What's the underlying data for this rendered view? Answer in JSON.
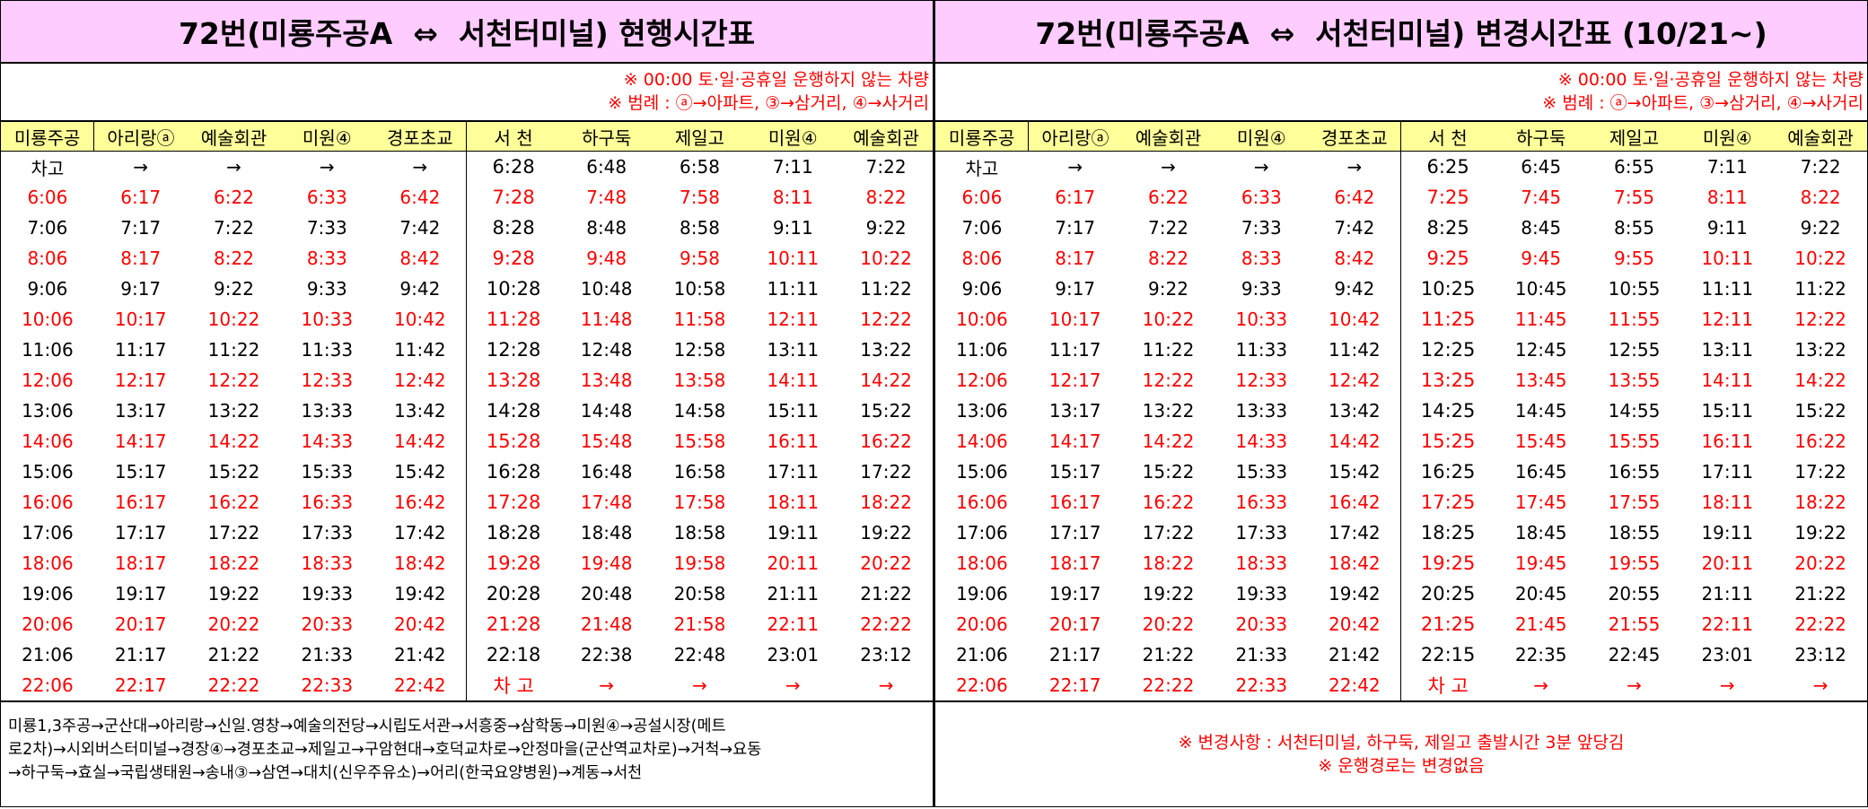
{
  "left": {
    "title": "72번(미룡주공A  ⇔  서천터미널) 현행시간표",
    "notes": [
      "※ 00:00 토·일·공휴일 운행하지 않는 차량",
      "※ 범례 : ⓐ→아파트, ③→삼거리, ④→사거리"
    ],
    "headers": [
      "미룡주공",
      "아리랑ⓐ",
      "예술회관",
      "미원④",
      "경포초교",
      "서 천",
      "하구둑",
      "제일고",
      "미원④",
      "예술회관"
    ],
    "rows": [
      [
        "차고",
        "→",
        "→",
        "→",
        "→",
        "6:28",
        "6:48",
        "6:58",
        "7:11",
        "7:22"
      ],
      [
        "6:06",
        "6:17",
        "6:22",
        "6:33",
        "6:42",
        "7:28",
        "7:48",
        "7:58",
        "8:11",
        "8:22"
      ],
      [
        "7:06",
        "7:17",
        "7:22",
        "7:33",
        "7:42",
        "8:28",
        "8:48",
        "8:58",
        "9:11",
        "9:22"
      ],
      [
        "8:06",
        "8:17",
        "8:22",
        "8:33",
        "8:42",
        "9:28",
        "9:48",
        "9:58",
        "10:11",
        "10:22"
      ],
      [
        "9:06",
        "9:17",
        "9:22",
        "9:33",
        "9:42",
        "10:28",
        "10:48",
        "10:58",
        "11:11",
        "11:22"
      ],
      [
        "10:06",
        "10:17",
        "10:22",
        "10:33",
        "10:42",
        "11:28",
        "11:48",
        "11:58",
        "12:11",
        "12:22"
      ],
      [
        "11:06",
        "11:17",
        "11:22",
        "11:33",
        "11:42",
        "12:28",
        "12:48",
        "12:58",
        "13:11",
        "13:22"
      ],
      [
        "12:06",
        "12:17",
        "12:22",
        "12:33",
        "12:42",
        "13:28",
        "13:48",
        "13:58",
        "14:11",
        "14:22"
      ],
      [
        "13:06",
        "13:17",
        "13:22",
        "13:33",
        "13:42",
        "14:28",
        "14:48",
        "14:58",
        "15:11",
        "15:22"
      ],
      [
        "14:06",
        "14:17",
        "14:22",
        "14:33",
        "14:42",
        "15:28",
        "15:48",
        "15:58",
        "16:11",
        "16:22"
      ],
      [
        "15:06",
        "15:17",
        "15:22",
        "15:33",
        "15:42",
        "16:28",
        "16:48",
        "16:58",
        "17:11",
        "17:22"
      ],
      [
        "16:06",
        "16:17",
        "16:22",
        "16:33",
        "16:42",
        "17:28",
        "17:48",
        "17:58",
        "18:11",
        "18:22"
      ],
      [
        "17:06",
        "17:17",
        "17:22",
        "17:33",
        "17:42",
        "18:28",
        "18:48",
        "18:58",
        "19:11",
        "19:22"
      ],
      [
        "18:06",
        "18:17",
        "18:22",
        "18:33",
        "18:42",
        "19:28",
        "19:48",
        "19:58",
        "20:11",
        "20:22"
      ],
      [
        "19:06",
        "19:17",
        "19:22",
        "19:33",
        "19:42",
        "20:28",
        "20:48",
        "20:58",
        "21:11",
        "21:22"
      ],
      [
        "20:06",
        "20:17",
        "20:22",
        "20:33",
        "20:42",
        "21:28",
        "21:48",
        "21:58",
        "22:11",
        "22:22"
      ],
      [
        "21:06",
        "21:17",
        "21:22",
        "21:33",
        "21:42",
        "22:18",
        "22:38",
        "22:48",
        "23:01",
        "23:12"
      ],
      [
        "22:06",
        "22:17",
        "22:22",
        "22:33",
        "22:42",
        "차 고",
        "→",
        "→",
        "→",
        "→"
      ]
    ],
    "route": [
      "미룡1,3주공→군산대→아리랑→신일.영창→예술의전당→시립도서관→서흥중→삼학동→미원④→공설시장(메트",
      "로2차)→시외버스터미널→경장④→경포초교→제일고→구암현대→호덕교차로→안정마을(군산역교차로)→거척→요동",
      "→하구둑→효실→국립생태원→송내③→삼연→대치(신우주유소)→어리(한국요양병원)→계동→서천"
    ]
  },
  "right": {
    "title": "72번(미룡주공A  ⇔  서천터미널) 변경시간표 (10/21~)",
    "notes": [
      "※ 00:00 토·일·공휴일 운행하지 않는 차량",
      "※ 범례 : ⓐ→아파트, ③→삼거리, ④→사거리"
    ],
    "headers": [
      "미룡주공",
      "아리랑ⓐ",
      "예술회관",
      "미원④",
      "경포초교",
      "서 천",
      "하구둑",
      "제일고",
      "미원④",
      "예술회관"
    ],
    "rows": [
      [
        "차고",
        "→",
        "→",
        "→",
        "→",
        "6:25",
        "6:45",
        "6:55",
        "7:11",
        "7:22"
      ],
      [
        "6:06",
        "6:17",
        "6:22",
        "6:33",
        "6:42",
        "7:25",
        "7:45",
        "7:55",
        "8:11",
        "8:22"
      ],
      [
        "7:06",
        "7:17",
        "7:22",
        "7:33",
        "7:42",
        "8:25",
        "8:45",
        "8:55",
        "9:11",
        "9:22"
      ],
      [
        "8:06",
        "8:17",
        "8:22",
        "8:33",
        "8:42",
        "9:25",
        "9:45",
        "9:55",
        "10:11",
        "10:22"
      ],
      [
        "9:06",
        "9:17",
        "9:22",
        "9:33",
        "9:42",
        "10:25",
        "10:45",
        "10:55",
        "11:11",
        "11:22"
      ],
      [
        "10:06",
        "10:17",
        "10:22",
        "10:33",
        "10:42",
        "11:25",
        "11:45",
        "11:55",
        "12:11",
        "12:22"
      ],
      [
        "11:06",
        "11:17",
        "11:22",
        "11:33",
        "11:42",
        "12:25",
        "12:45",
        "12:55",
        "13:11",
        "13:22"
      ],
      [
        "12:06",
        "12:17",
        "12:22",
        "12:33",
        "12:42",
        "13:25",
        "13:45",
        "13:55",
        "14:11",
        "14:22"
      ],
      [
        "13:06",
        "13:17",
        "13:22",
        "13:33",
        "13:42",
        "14:25",
        "14:45",
        "14:55",
        "15:11",
        "15:22"
      ],
      [
        "14:06",
        "14:17",
        "14:22",
        "14:33",
        "14:42",
        "15:25",
        "15:45",
        "15:55",
        "16:11",
        "16:22"
      ],
      [
        "15:06",
        "15:17",
        "15:22",
        "15:33",
        "15:42",
        "16:25",
        "16:45",
        "16:55",
        "17:11",
        "17:22"
      ],
      [
        "16:06",
        "16:17",
        "16:22",
        "16:33",
        "16:42",
        "17:25",
        "17:45",
        "17:55",
        "18:11",
        "18:22"
      ],
      [
        "17:06",
        "17:17",
        "17:22",
        "17:33",
        "17:42",
        "18:25",
        "18:45",
        "18:55",
        "19:11",
        "19:22"
      ],
      [
        "18:06",
        "18:17",
        "18:22",
        "18:33",
        "18:42",
        "19:25",
        "19:45",
        "19:55",
        "20:11",
        "20:22"
      ],
      [
        "19:06",
        "19:17",
        "19:22",
        "19:33",
        "19:42",
        "20:25",
        "20:45",
        "20:55",
        "21:11",
        "21:22"
      ],
      [
        "20:06",
        "20:17",
        "20:22",
        "20:33",
        "20:42",
        "21:25",
        "21:45",
        "21:55",
        "22:11",
        "22:22"
      ],
      [
        "21:06",
        "21:17",
        "21:22",
        "21:33",
        "21:42",
        "22:15",
        "22:35",
        "22:45",
        "23:01",
        "23:12"
      ],
      [
        "22:06",
        "22:17",
        "22:22",
        "22:33",
        "22:42",
        "차 고",
        "→",
        "→",
        "→",
        "→"
      ]
    ],
    "changes": [
      "※ 변경사항 : 서천터미널, 하구둑, 제일고 출발시간 3분 앞당김",
      "※ 운행경로는 변경없음"
    ]
  }
}
